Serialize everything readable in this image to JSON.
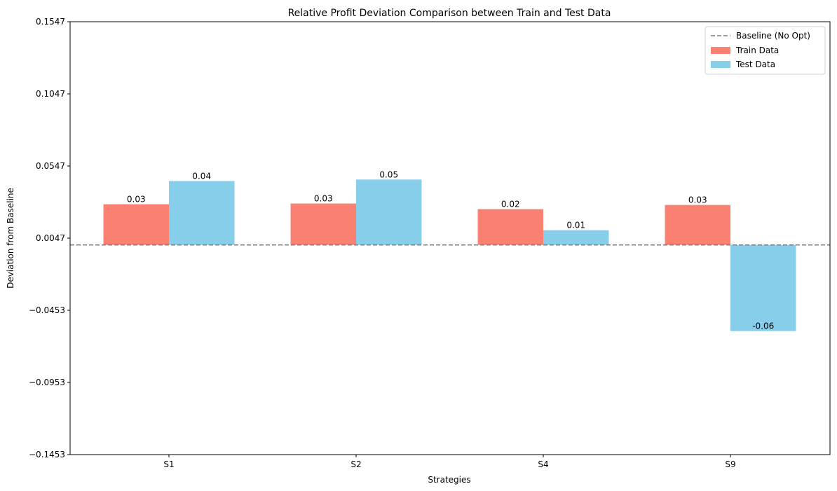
{
  "chart_data": {
    "type": "bar",
    "title": "Relative Profit Deviation Comparison between Train and Test Data",
    "xlabel": "Strategies",
    "ylabel": "Deviation from Baseline",
    "categories": [
      "S1",
      "S2",
      "S4",
      "S9"
    ],
    "series": [
      {
        "name": "Train Data",
        "color": "#fa8072",
        "values": [
          0.0282,
          0.0287,
          0.0248,
          0.0277
        ],
        "labels": [
          "0.03",
          "0.03",
          "0.02",
          "0.03"
        ]
      },
      {
        "name": "Test Data",
        "color": "#87ceeb",
        "values": [
          0.0443,
          0.0453,
          0.0102,
          -0.0597
        ],
        "labels": [
          "0.04",
          "0.05",
          "0.01",
          "-0.06"
        ]
      }
    ],
    "baseline": {
      "name": "Baseline (No Opt)",
      "value": 0,
      "color": "#808080",
      "style": "dashed"
    },
    "ylim": [
      -0.1453,
      0.1547
    ],
    "yticks": [
      -0.1453,
      -0.0953,
      -0.0453,
      0.0047,
      0.0547,
      0.1047,
      0.1547
    ],
    "ytick_labels": [
      "−0.1453",
      "−0.0953",
      "−0.0453",
      "0.0047",
      "0.0547",
      "0.1047",
      "0.1547"
    ],
    "grid": false,
    "legend_position": "top-right"
  }
}
